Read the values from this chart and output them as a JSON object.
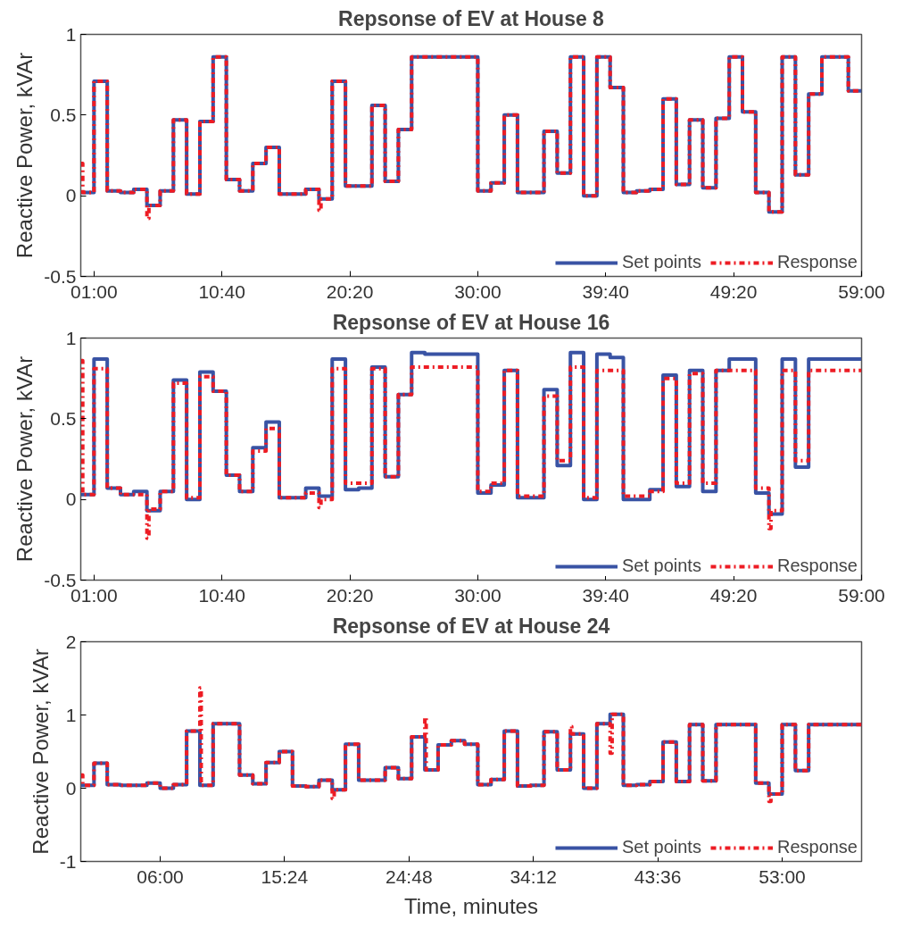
{
  "chart_data": [
    {
      "type": "step",
      "title": "Repsonse of EV at House 8",
      "ylabel": "Reactive Power, kVAr",
      "xlim": [
        0,
        59
      ],
      "ylim": [
        -0.5,
        1
      ],
      "xticks": [
        {
          "value": 1,
          "label": "01:00"
        },
        {
          "value": 10.667,
          "label": "10:40"
        },
        {
          "value": 20.333,
          "label": "20:20"
        },
        {
          "value": 30,
          "label": "30:00"
        },
        {
          "value": 39.667,
          "label": "39:40"
        },
        {
          "value": 49.333,
          "label": "49:20"
        },
        {
          "value": 59,
          "label": "59:00"
        }
      ],
      "yticks": [
        -0.5,
        0,
        0.5,
        1
      ],
      "grid": false,
      "legend": "bottom right",
      "x": [
        0,
        1,
        2,
        3,
        4,
        5,
        6,
        7,
        8,
        9,
        10,
        11,
        12,
        13,
        14,
        15,
        16,
        17,
        18,
        19,
        20,
        21,
        22,
        23,
        24,
        25,
        26,
        27,
        28,
        29,
        30,
        31,
        32,
        33,
        34,
        35,
        36,
        37,
        38,
        39,
        40,
        41,
        42,
        43,
        44,
        45,
        46,
        47,
        48,
        49,
        50,
        51,
        52,
        53,
        54,
        55,
        56,
        57,
        58,
        59
      ],
      "series": [
        {
          "name": "Set points",
          "color": "#3953a4",
          "line_style": "solid",
          "values": [
            0.02,
            0.71,
            0.03,
            0.02,
            0.04,
            -0.06,
            0.03,
            0.47,
            0.01,
            0.46,
            0.86,
            0.1,
            0.03,
            0.2,
            0.3,
            0.01,
            0.01,
            0.04,
            -0.02,
            0.71,
            0.06,
            0.06,
            0.56,
            0.09,
            0.41,
            0.86,
            0.86,
            0.86,
            0.86,
            0.86,
            0.03,
            0.08,
            0.5,
            0.02,
            0.02,
            0.4,
            0.14,
            0.86,
            0.0,
            0.86,
            0.67,
            0.02,
            0.03,
            0.04,
            0.6,
            0.07,
            0.47,
            0.05,
            0.48,
            0.86,
            0.52,
            0.02,
            -0.1,
            0.86,
            0.13,
            0.63,
            0.86,
            0.86,
            0.65,
            0.65
          ]
        },
        {
          "name": "Response",
          "color": "#ed1c24",
          "line_style": "dashdot",
          "x": [
            0,
            0.15,
            1,
            2,
            3,
            4,
            5,
            5.15,
            6,
            7,
            8,
            9,
            10,
            11,
            12,
            13,
            14,
            15,
            16,
            17,
            18,
            18.15,
            19,
            20,
            21,
            22,
            23,
            24,
            25,
            26,
            27,
            28,
            29,
            30,
            31,
            32,
            33,
            34,
            35,
            36,
            37,
            38,
            39,
            40,
            41,
            42,
            43,
            44,
            45,
            46,
            47,
            48,
            49,
            50,
            51,
            52,
            53,
            54,
            55,
            56,
            57,
            58,
            59
          ],
          "values": [
            0.2,
            0.02,
            0.71,
            0.03,
            0.02,
            0.04,
            -0.14,
            -0.06,
            0.03,
            0.47,
            0.01,
            0.46,
            0.86,
            0.1,
            0.03,
            0.2,
            0.3,
            0.01,
            0.01,
            0.04,
            -0.09,
            -0.02,
            0.71,
            0.06,
            0.06,
            0.56,
            0.09,
            0.41,
            0.86,
            0.86,
            0.86,
            0.86,
            0.86,
            0.03,
            0.08,
            0.5,
            0.02,
            0.02,
            0.4,
            0.14,
            0.86,
            0.0,
            0.86,
            0.67,
            0.02,
            0.03,
            0.04,
            0.6,
            0.07,
            0.47,
            0.05,
            0.48,
            0.86,
            0.52,
            0.02,
            -0.1,
            0.86,
            0.13,
            0.63,
            0.86,
            0.86,
            0.65,
            0.65
          ]
        }
      ]
    },
    {
      "type": "step",
      "title": "Repsonse of EV at House 16",
      "ylabel": "Reactive Power, kVAr",
      "xlim": [
        0,
        59
      ],
      "ylim": [
        -0.5,
        1
      ],
      "xticks": [
        {
          "value": 1,
          "label": "01:00"
        },
        {
          "value": 10.667,
          "label": "10:40"
        },
        {
          "value": 20.333,
          "label": "20:20"
        },
        {
          "value": 30,
          "label": "30:00"
        },
        {
          "value": 39.667,
          "label": "39:40"
        },
        {
          "value": 49.333,
          "label": "49:20"
        },
        {
          "value": 59,
          "label": "59:00"
        }
      ],
      "yticks": [
        -0.5,
        0,
        0.5,
        1
      ],
      "grid": false,
      "legend": "bottom right",
      "x": [
        0,
        1,
        2,
        3,
        4,
        5,
        6,
        7,
        8,
        9,
        10,
        11,
        12,
        13,
        14,
        15,
        16,
        17,
        18,
        19,
        20,
        21,
        22,
        23,
        24,
        25,
        26,
        27,
        28,
        29,
        30,
        31,
        32,
        33,
        34,
        35,
        36,
        37,
        38,
        39,
        40,
        41,
        42,
        43,
        44,
        45,
        46,
        47,
        48,
        49,
        50,
        51,
        52,
        53,
        54,
        55,
        56,
        57,
        58,
        59
      ],
      "series": [
        {
          "name": "Set points",
          "color": "#3953a4",
          "line_style": "solid",
          "values": [
            0.03,
            0.87,
            0.07,
            0.03,
            0.05,
            -0.07,
            0.05,
            0.74,
            0.0,
            0.79,
            0.67,
            0.15,
            0.05,
            0.32,
            0.48,
            0.01,
            0.01,
            0.07,
            0.02,
            0.87,
            0.06,
            0.07,
            0.82,
            0.14,
            0.65,
            0.91,
            0.9,
            0.9,
            0.9,
            0.9,
            0.04,
            0.09,
            0.8,
            0.01,
            0.01,
            0.68,
            0.21,
            0.91,
            0.0,
            0.9,
            0.88,
            0.0,
            0.0,
            0.06,
            0.77,
            0.08,
            0.8,
            0.05,
            0.8,
            0.87,
            0.87,
            0.04,
            -0.09,
            0.87,
            0.2,
            0.87,
            0.87,
            0.87,
            0.87,
            0.87
          ]
        },
        {
          "name": "Response",
          "color": "#ed1c24",
          "line_style": "dashdot",
          "x": [
            0,
            0.15,
            1,
            2,
            3,
            4,
            5,
            5.15,
            6,
            7,
            8,
            9,
            10,
            11,
            12,
            13,
            14,
            15,
            16,
            17,
            18,
            18.15,
            19,
            20,
            21,
            22,
            23,
            24,
            25,
            26,
            27,
            28,
            29,
            30,
            31,
            32,
            33,
            34,
            35,
            36,
            37,
            38,
            39,
            40,
            41,
            42,
            43,
            44,
            45,
            46,
            47,
            48,
            49,
            50,
            51,
            52,
            52.15,
            53,
            54,
            55,
            56,
            57,
            58,
            59
          ],
          "values": [
            0.86,
            0.03,
            0.81,
            0.07,
            0.03,
            0.03,
            -0.24,
            -0.06,
            0.05,
            0.72,
            0.01,
            0.76,
            0.67,
            0.15,
            0.05,
            0.3,
            0.44,
            0.01,
            0.01,
            0.04,
            -0.05,
            0.0,
            0.81,
            0.1,
            0.1,
            0.81,
            0.14,
            0.65,
            0.82,
            0.82,
            0.82,
            0.82,
            0.82,
            0.05,
            0.1,
            0.8,
            0.02,
            0.02,
            0.64,
            0.24,
            0.82,
            0.01,
            0.8,
            0.8,
            0.02,
            0.02,
            0.05,
            0.75,
            0.1,
            0.78,
            0.1,
            0.8,
            0.8,
            0.8,
            0.07,
            -0.18,
            -0.07,
            0.8,
            0.24,
            0.8,
            0.8,
            0.8,
            0.8,
            0.8
          ]
        }
      ]
    },
    {
      "type": "step",
      "title": "Repsonse of EV at House 24",
      "ylabel": "Reactive Power, kVAr",
      "xlabel": "Time, minutes",
      "xlim": [
        0,
        59
      ],
      "ylim": [
        -1,
        2
      ],
      "xticks": [
        {
          "value": 6,
          "label": "06:00"
        },
        {
          "value": 15.4,
          "label": "15:24"
        },
        {
          "value": 24.8,
          "label": "24:48"
        },
        {
          "value": 34.2,
          "label": "34:12"
        },
        {
          "value": 43.6,
          "label": "43:36"
        },
        {
          "value": 53,
          "label": "53:00"
        }
      ],
      "yticks": [
        -1,
        0,
        1,
        2
      ],
      "grid": false,
      "legend": "bottom right",
      "x": [
        0,
        1,
        2,
        3,
        4,
        5,
        6,
        7,
        8,
        9,
        10,
        11,
        12,
        13,
        14,
        15,
        16,
        17,
        18,
        19,
        20,
        21,
        22,
        23,
        24,
        25,
        26,
        27,
        28,
        29,
        30,
        31,
        32,
        33,
        34,
        35,
        36,
        37,
        38,
        39,
        40,
        41,
        42,
        43,
        44,
        45,
        46,
        47,
        48,
        49,
        50,
        51,
        52,
        53,
        54,
        55,
        56,
        57,
        58,
        59
      ],
      "series": [
        {
          "name": "Set points",
          "color": "#3953a4",
          "line_style": "solid",
          "values": [
            0.04,
            0.34,
            0.05,
            0.04,
            0.04,
            0.07,
            0.0,
            0.05,
            0.78,
            0.04,
            0.88,
            0.88,
            0.18,
            0.06,
            0.35,
            0.5,
            0.03,
            0.02,
            0.11,
            -0.02,
            0.6,
            0.11,
            0.11,
            0.28,
            0.13,
            0.7,
            0.25,
            0.59,
            0.65,
            0.6,
            0.05,
            0.12,
            0.78,
            0.03,
            0.04,
            0.77,
            0.25,
            0.74,
            0.0,
            0.88,
            1.01,
            0.04,
            0.05,
            0.09,
            0.63,
            0.09,
            0.87,
            0.1,
            0.87,
            0.87,
            0.87,
            0.07,
            -0.08,
            0.87,
            0.24,
            0.87,
            0.87,
            0.87,
            0.87,
            0.87
          ]
        },
        {
          "name": "Response",
          "color": "#ed1c24",
          "line_style": "dashdot",
          "x": [
            0,
            0.15,
            1,
            2,
            3,
            4,
            5,
            6,
            7,
            8,
            9,
            9.1,
            10,
            11,
            12,
            13,
            14,
            15,
            16,
            17,
            18,
            19,
            19.15,
            20,
            21,
            22,
            23,
            24,
            25,
            26,
            26.1,
            27,
            28,
            29,
            30,
            31,
            32,
            33,
            34,
            35,
            36,
            37,
            37.1,
            38,
            39,
            40,
            40.15,
            41,
            42,
            43,
            44,
            45,
            46,
            47,
            48,
            49,
            50,
            51,
            52,
            52.15,
            53,
            54,
            55,
            56,
            57,
            58,
            59
          ],
          "values": [
            0.18,
            0.04,
            0.34,
            0.05,
            0.04,
            0.04,
            0.07,
            0.0,
            0.05,
            0.78,
            1.37,
            0.04,
            0.88,
            0.88,
            0.18,
            0.06,
            0.35,
            0.5,
            0.03,
            0.02,
            0.11,
            -0.14,
            -0.02,
            0.6,
            0.11,
            0.11,
            0.28,
            0.13,
            0.7,
            0.97,
            0.25,
            0.59,
            0.65,
            0.6,
            0.05,
            0.12,
            0.78,
            0.03,
            0.04,
            0.77,
            0.25,
            0.84,
            0.74,
            0.0,
            0.88,
            0.48,
            1.01,
            0.04,
            0.05,
            0.09,
            0.63,
            0.09,
            0.87,
            0.1,
            0.87,
            0.87,
            0.87,
            0.07,
            -0.18,
            -0.08,
            0.87,
            0.24,
            0.87,
            0.87,
            0.87,
            0.87,
            0.87
          ]
        }
      ]
    }
  ]
}
